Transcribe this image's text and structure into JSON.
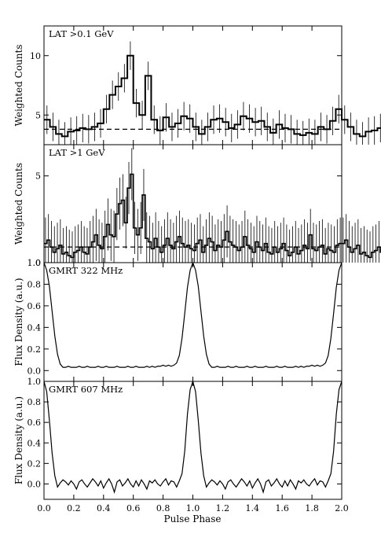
{
  "chart_data": [
    {
      "type": "line",
      "panel_label": "LAT >0.1 GeV",
      "ylabel": "Weighted Counts",
      "xlim": [
        0,
        2
      ],
      "ylim": [
        2.5,
        12.5
      ],
      "yticks": [
        5,
        10
      ],
      "baseline": 3.8,
      "bin_width": 0.04,
      "bins_one_cycle": [
        4.6,
        4.0,
        3.4,
        3.2,
        3.6,
        3.7,
        3.9,
        3.8,
        4.0,
        4.3,
        5.5,
        6.7,
        7.4,
        8.1,
        10.0,
        6.0,
        5.0,
        8.3,
        4.6,
        3.7,
        4.8,
        4.0,
        4.3,
        4.9,
        4.7,
        4.0,
        3.4,
        4.0,
        4.6,
        4.7,
        4.4,
        3.9,
        4.2,
        4.9,
        4.7,
        4.4,
        4.5,
        4.0,
        3.5,
        4.2,
        3.9,
        3.8,
        3.4,
        3.3,
        3.5,
        3.4,
        4.0,
        3.8,
        4.5,
        5.5
      ],
      "error_half": 1.2
    },
    {
      "type": "line",
      "panel_label": "LAT >1 GeV",
      "ylabel": "Weighted Counts",
      "xlim": [
        0,
        2
      ],
      "ylim": [
        0,
        6.8
      ],
      "yticks": [
        0,
        5
      ],
      "baseline": 0.9,
      "bin_width": 0.02,
      "bins_one_cycle": [
        1.1,
        1.3,
        0.9,
        0.6,
        0.8,
        1.0,
        0.5,
        0.6,
        0.4,
        0.3,
        0.6,
        0.7,
        0.9,
        0.6,
        0.5,
        0.9,
        1.2,
        1.6,
        1.0,
        0.8,
        1.5,
        2.2,
        1.6,
        1.5,
        2.8,
        3.4,
        3.6,
        2.3,
        4.3,
        5.1,
        2.0,
        1.6,
        2.0,
        3.9,
        1.4,
        1.2,
        0.8,
        1.4,
        0.9,
        0.6,
        1.0,
        1.4,
        1.0,
        0.8,
        1.2,
        1.5,
        1.1,
        0.9,
        1.0,
        0.8,
        0.7,
        1.1,
        1.3,
        0.6,
        1.0,
        1.4,
        1.2,
        0.7,
        1.0,
        0.9,
        1.3,
        1.8,
        1.2,
        1.0,
        0.9,
        0.7,
        0.9,
        1.5,
        1.0,
        0.8,
        0.6,
        1.2,
        0.9,
        0.7,
        1.1,
        0.6,
        0.5,
        0.9,
        0.6,
        0.8,
        1.1,
        0.7,
        0.4,
        0.6,
        0.9,
        0.5,
        0.7,
        1.0,
        0.8,
        1.6,
        0.8,
        0.7,
        0.9,
        1.0,
        0.5,
        0.8,
        0.7,
        0.6,
        1.0,
        1.1
      ],
      "error_half": 1.5
    },
    {
      "type": "line",
      "panel_label": "GMRT 322 MHz",
      "ylabel": "Flux Density (a.u.)",
      "xlim": [
        0,
        2
      ],
      "ylim": [
        -0.1,
        1.0
      ],
      "yticks": [
        0.0,
        0.2,
        0.4,
        0.6,
        0.8,
        1.0
      ],
      "profile_one_cycle": [
        1.0,
        0.93,
        0.78,
        0.55,
        0.32,
        0.15,
        0.06,
        0.03,
        0.03,
        0.04,
        0.03,
        0.03,
        0.03,
        0.04,
        0.03,
        0.03,
        0.04,
        0.03,
        0.03,
        0.03,
        0.04,
        0.03,
        0.03,
        0.04,
        0.03,
        0.03,
        0.03,
        0.04,
        0.03,
        0.03,
        0.03,
        0.04,
        0.03,
        0.03,
        0.04,
        0.03,
        0.03,
        0.03,
        0.04,
        0.03,
        0.04,
        0.03,
        0.04,
        0.04,
        0.05,
        0.04,
        0.05,
        0.04,
        0.05,
        0.07,
        0.14,
        0.3,
        0.53,
        0.77,
        0.93,
        1.0
      ]
    },
    {
      "type": "line",
      "panel_label": "GMRT 607 MHz",
      "ylabel": "Flux Density (a.u.)",
      "xlabel": "Pulse Phase",
      "xlim": [
        0,
        2
      ],
      "ylim": [
        -0.15,
        1.0
      ],
      "yticks": [
        0.0,
        0.2,
        0.4,
        0.6,
        0.8,
        1.0
      ],
      "xticks": [
        "0.0",
        "0.2",
        "0.4",
        "0.6",
        "0.8",
        "1.0",
        "1.2",
        "1.4",
        "1.6",
        "1.8",
        "2.0"
      ],
      "profile_one_cycle": [
        1.0,
        0.9,
        0.62,
        0.3,
        0.08,
        -0.03,
        0.01,
        0.04,
        0.02,
        -0.01,
        0.03,
        0.0,
        -0.05,
        0.02,
        0.04,
        0.0,
        -0.03,
        0.01,
        0.05,
        0.02,
        -0.02,
        0.03,
        -0.04,
        0.01,
        0.05,
        0.0,
        -0.08,
        0.02,
        0.04,
        -0.02,
        0.01,
        0.05,
        0.0,
        -0.03,
        0.03,
        -0.02,
        0.04,
        0.0,
        -0.05,
        0.03,
        0.01,
        0.04,
        0.0,
        -0.02,
        0.02,
        0.05,
        -0.01,
        0.03,
        0.02,
        -0.03,
        0.03,
        0.1,
        0.32,
        0.68,
        0.92,
        1.0
      ]
    }
  ]
}
